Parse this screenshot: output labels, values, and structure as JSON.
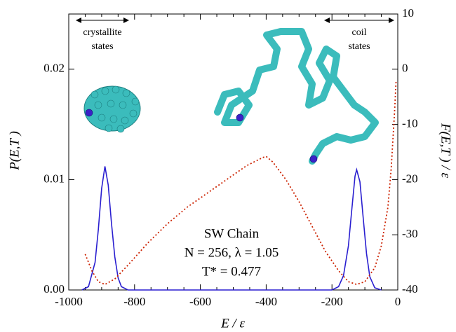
{
  "chart_data": {
    "type": "line",
    "xlabel": "E / ε",
    "ylabel": "P(E,T )",
    "y2label": "F(E,T ) / ε",
    "annotations": [
      "crystallite",
      "states",
      "coil",
      "states",
      "SW Chain",
      "N = 256, λ = 1.05",
      "T* = 0.477"
    ],
    "xlim": [
      -1000,
      0
    ],
    "xticks": [
      -1000,
      -800,
      -600,
      -400,
      -200,
      0
    ],
    "xminorticks": [
      -950,
      -900,
      -850,
      -750,
      -700,
      -650,
      -550,
      -500,
      -450,
      -350,
      -300,
      -250,
      -150,
      -100,
      -50
    ],
    "ylim": [
      0,
      0.025
    ],
    "yticks": [
      {
        "value": 0,
        "label": "0.00"
      },
      {
        "value": 0.01,
        "label": "0.01"
      },
      {
        "value": 0.02,
        "label": "0.02"
      }
    ],
    "y2lim": [
      -40,
      10
    ],
    "y2ticks": [
      -40,
      -30,
      -20,
      -10,
      0,
      10
    ],
    "series": [
      {
        "color": "#2a1fd0",
        "dash": false,
        "x": [
          -960,
          -940,
          -920,
          -910,
          -900,
          -890,
          -880,
          -870,
          -860,
          -850,
          -840,
          -820,
          -200,
          -180,
          -165,
          -150,
          -140,
          -130,
          -125,
          -115,
          -105,
          -95,
          -85,
          -70,
          -50
        ],
        "values": [
          0,
          0.0003,
          0.0025,
          0.0055,
          0.0092,
          0.0112,
          0.0095,
          0.006,
          0.003,
          0.0011,
          0.0003,
          0,
          0,
          0.0003,
          0.0013,
          0.004,
          0.0072,
          0.0103,
          0.0109,
          0.0098,
          0.0065,
          0.0033,
          0.0012,
          0.0002,
          0
        ]
      },
      {
        "color": "#cc2200",
        "dash": true,
        "axis": "y2",
        "x": [
          -950,
          -930,
          -910,
          -890,
          -860,
          -820,
          -760,
          -700,
          -640,
          -580,
          -520,
          -460,
          -410,
          -400,
          -380,
          -340,
          -300,
          -260,
          -220,
          -180,
          -150,
          -125,
          -100,
          -70,
          -50,
          -30,
          -20,
          -10,
          -5
        ],
        "values": [
          -33.5,
          -36.5,
          -38.5,
          -39,
          -38,
          -35.5,
          -31.5,
          -28,
          -25,
          -22.5,
          -20,
          -17.5,
          -16,
          -15.8,
          -16.8,
          -20,
          -24,
          -28.5,
          -33,
          -36.5,
          -38.5,
          -39,
          -38.5,
          -36,
          -32,
          -25,
          -18,
          -8,
          -2
        ]
      }
    ]
  }
}
